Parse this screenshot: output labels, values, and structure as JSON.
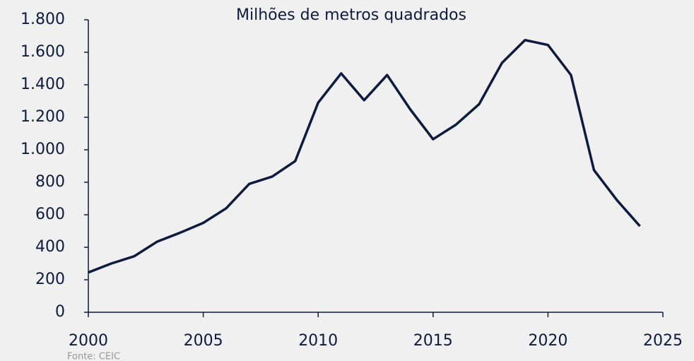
{
  "chart_data": {
    "type": "line",
    "title": "Milhões de metros quadrados",
    "source": "Fonte: CEIC",
    "x": [
      2000,
      2001,
      2002,
      2003,
      2004,
      2005,
      2006,
      2007,
      2008,
      2009,
      2010,
      2011,
      2012,
      2013,
      2014,
      2015,
      2016,
      2017,
      2018,
      2019,
      2020,
      2021,
      2022,
      2023,
      2024
    ],
    "series": [
      {
        "name": "Milhões de metros quadrados",
        "color": "#0d1b3e",
        "values": [
          245,
          300,
          345,
          435,
          490,
          550,
          640,
          790,
          835,
          930,
          1290,
          1470,
          1305,
          1460,
          1250,
          1065,
          1155,
          1280,
          1535,
          1675,
          1645,
          1460,
          875,
          690,
          530
        ]
      }
    ],
    "xlim": [
      2000,
      2025
    ],
    "xticks": [
      2000,
      2005,
      2010,
      2015,
      2020,
      2025
    ],
    "ylim": [
      0,
      1800
    ],
    "yticks": [
      0,
      200,
      400,
      600,
      800,
      {
        "value": 1000,
        "label": "1.000"
      },
      {
        "value": 1200,
        "label": "1.200"
      },
      {
        "value": 1400,
        "label": "1.400"
      },
      {
        "value": 1600,
        "label": "1.600"
      },
      {
        "value": 1800,
        "label": "1.800"
      }
    ],
    "grid": false
  }
}
